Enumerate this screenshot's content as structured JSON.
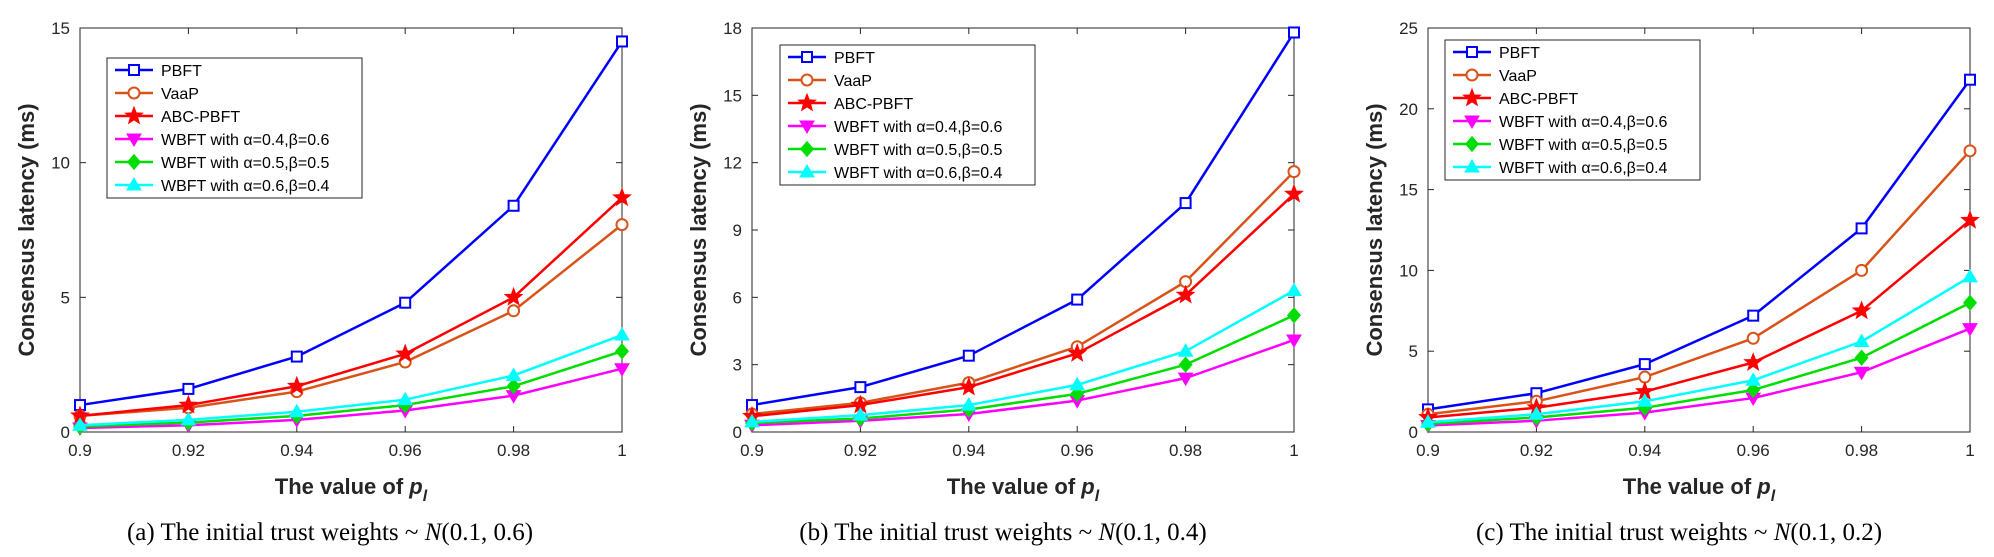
{
  "chart_data": [
    {
      "type": "line",
      "caption": {
        "prefix": "(a) The initial trust weights ~ ",
        "dist_letter": "N",
        "dist_params": "(0.1, 0.6)"
      },
      "xlabel": "The value of ",
      "xlabel_var": "p",
      "xlabel_sub": "l",
      "ylabel": "Consensus latency (ms)",
      "x": [
        0.9,
        0.92,
        0.94,
        0.96,
        0.98,
        1
      ],
      "x_ticks": [
        "0.9",
        "0.92",
        "0.94",
        "0.96",
        "0.98",
        "1"
      ],
      "ylim": [
        0,
        15
      ],
      "y_ticks": [
        0,
        5,
        10,
        15
      ],
      "grid": false,
      "legend_position": "top-left",
      "series": [
        {
          "name": "PBFT",
          "color": "#0000ff",
          "marker": "square",
          "values": [
            1.0,
            1.6,
            2.8,
            4.8,
            8.4,
            14.5
          ]
        },
        {
          "name": "VaaP",
          "color": "#d95319",
          "marker": "circle",
          "values": [
            0.6,
            0.9,
            1.5,
            2.6,
            4.5,
            7.7
          ]
        },
        {
          "name": "ABC-PBFT",
          "color": "#ff0000",
          "marker": "star",
          "values": [
            0.6,
            1.0,
            1.7,
            2.9,
            5.0,
            8.7
          ]
        },
        {
          "name": "WBFT with α=0.4,β=0.6",
          "color": "#ff00ff",
          "marker": "triangle-down",
          "values": [
            0.15,
            0.25,
            0.45,
            0.8,
            1.35,
            2.35
          ]
        },
        {
          "name": "WBFT with α=0.5,β=0.5",
          "color": "#00dd00",
          "marker": "diamond",
          "values": [
            0.2,
            0.35,
            0.6,
            1.0,
            1.7,
            3.0
          ]
        },
        {
          "name": "WBFT with α=0.6,β=0.4",
          "color": "#00ffff",
          "marker": "triangle-up",
          "values": [
            0.25,
            0.45,
            0.75,
            1.2,
            2.1,
            3.6
          ]
        }
      ]
    },
    {
      "type": "line",
      "caption": {
        "prefix": "(b) The initial trust weights ~ ",
        "dist_letter": "N",
        "dist_params": "(0.1, 0.4)"
      },
      "xlabel": "The value of ",
      "xlabel_var": "p",
      "xlabel_sub": "l",
      "ylabel": "Consensus latency (ms)",
      "x": [
        0.9,
        0.92,
        0.94,
        0.96,
        0.98,
        1
      ],
      "x_ticks": [
        "0.9",
        "0.92",
        "0.94",
        "0.96",
        "0.98",
        "1"
      ],
      "ylim": [
        0,
        18
      ],
      "y_ticks": [
        0,
        3,
        6,
        9,
        12,
        15,
        18
      ],
      "grid": false,
      "legend_position": "top-left",
      "series": [
        {
          "name": "PBFT",
          "color": "#0000ff",
          "marker": "square",
          "values": [
            1.2,
            2.0,
            3.4,
            5.9,
            10.2,
            17.8
          ]
        },
        {
          "name": "VaaP",
          "color": "#d95319",
          "marker": "circle",
          "values": [
            0.8,
            1.3,
            2.2,
            3.8,
            6.7,
            11.6
          ]
        },
        {
          "name": "ABC-PBFT",
          "color": "#ff0000",
          "marker": "star",
          "values": [
            0.7,
            1.2,
            2.0,
            3.5,
            6.1,
            10.6
          ]
        },
        {
          "name": "WBFT with α=0.4,β=0.6",
          "color": "#ff00ff",
          "marker": "triangle-down",
          "values": [
            0.3,
            0.5,
            0.8,
            1.4,
            2.4,
            4.1
          ]
        },
        {
          "name": "WBFT with α=0.5,β=0.5",
          "color": "#00dd00",
          "marker": "diamond",
          "values": [
            0.4,
            0.6,
            1.0,
            1.7,
            3.0,
            5.2
          ]
        },
        {
          "name": "WBFT with α=0.6,β=0.4",
          "color": "#00ffff",
          "marker": "triangle-up",
          "values": [
            0.45,
            0.75,
            1.2,
            2.1,
            3.6,
            6.3
          ]
        }
      ]
    },
    {
      "type": "line",
      "caption": {
        "prefix": "(c) The initial trust weights ~ ",
        "dist_letter": "N",
        "dist_params": "(0.1, 0.2)"
      },
      "xlabel": "The value of ",
      "xlabel_var": "p",
      "xlabel_sub": "l",
      "ylabel": "Consensus latency (ms)",
      "x": [
        0.9,
        0.92,
        0.94,
        0.96,
        0.98,
        1
      ],
      "x_ticks": [
        "0.9",
        "0.92",
        "0.94",
        "0.96",
        "0.98",
        "1"
      ],
      "ylim": [
        0,
        25
      ],
      "y_ticks": [
        0,
        5,
        10,
        15,
        20,
        25
      ],
      "grid": false,
      "legend_position": "top-left",
      "series": [
        {
          "name": "PBFT",
          "color": "#0000ff",
          "marker": "square",
          "values": [
            1.4,
            2.4,
            4.2,
            7.2,
            12.6,
            21.8
          ]
        },
        {
          "name": "VaaP",
          "color": "#d95319",
          "marker": "circle",
          "values": [
            1.1,
            1.9,
            3.4,
            5.8,
            10.0,
            17.4
          ]
        },
        {
          "name": "ABC-PBFT",
          "color": "#ff0000",
          "marker": "star",
          "values": [
            0.9,
            1.5,
            2.5,
            4.3,
            7.5,
            13.1
          ]
        },
        {
          "name": "WBFT with α=0.4,β=0.6",
          "color": "#ff00ff",
          "marker": "triangle-down",
          "values": [
            0.4,
            0.7,
            1.2,
            2.1,
            3.7,
            6.4
          ]
        },
        {
          "name": "WBFT with α=0.5,β=0.5",
          "color": "#00dd00",
          "marker": "diamond",
          "values": [
            0.5,
            0.9,
            1.5,
            2.6,
            4.6,
            8.0
          ]
        },
        {
          "name": "WBFT with α=0.6,β=0.4",
          "color": "#00ffff",
          "marker": "triangle-up",
          "values": [
            0.6,
            1.1,
            1.9,
            3.2,
            5.6,
            9.6
          ]
        }
      ]
    }
  ]
}
